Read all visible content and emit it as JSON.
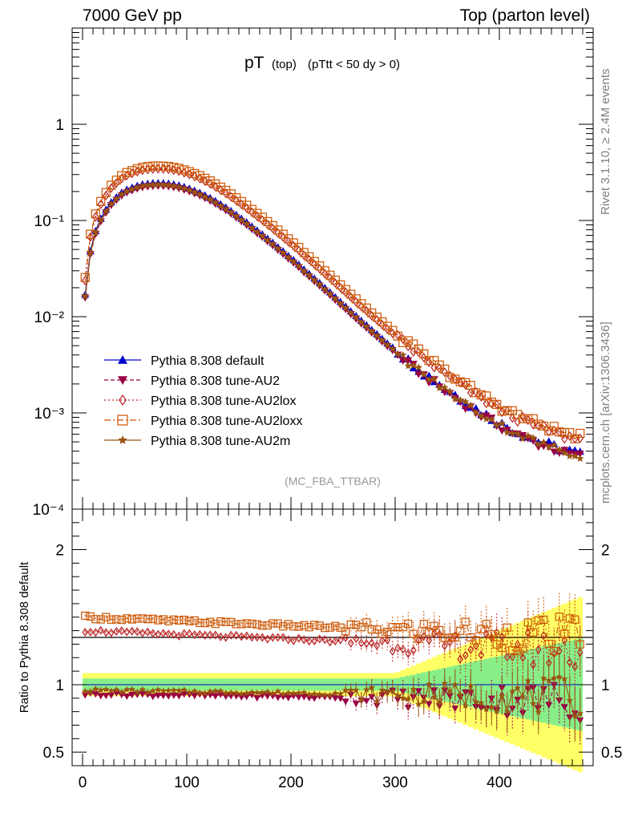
{
  "header": {
    "left": "7000 GeV pp",
    "right": "Top (parton level)"
  },
  "side_labels": {
    "rivet": "Rivet 3.1.10, ≥ 2.4M events",
    "mcplots": "mcplots.cern.ch [arXiv:1306.3436]"
  },
  "chart_data": [
    {
      "type": "line",
      "title_main": "pT",
      "title_sub1": "(top)",
      "title_sub2": "(pTtt < 50 dy > 0)",
      "watermark": "(MC_FBA_TTBAR)",
      "xlim": [
        -10,
        490
      ],
      "ylim": [
        0.0001,
        10
      ],
      "yscale": "log",
      "yticks": [
        "10⁻⁴",
        "10⁻³",
        "10⁻²",
        "10⁻¹",
        "1"
      ],
      "legend_position": "bottom-left",
      "series": [
        {
          "name": "Pythia 8.308 default",
          "color": "#0000cc",
          "marker": "triangle-up",
          "dash": "",
          "scale": 1.0
        },
        {
          "name": "Pythia 8.308 tune-AU2",
          "color": "#990044",
          "marker": "triangle-down",
          "dash": "5,3",
          "scale": 0.93
        },
        {
          "name": "Pythia 8.308 tune-AU2lox",
          "color": "#bb2222",
          "marker": "diamond",
          "dash": "2,3",
          "scale": 1.4
        },
        {
          "name": "Pythia 8.308 tune-AU2loxx",
          "color": "#cc5500",
          "marker": "square-open",
          "dash": "8,3,2,3",
          "scale": 1.5
        },
        {
          "name": "Pythia 8.308 tune-AU2m",
          "color": "#995511",
          "marker": "star",
          "dash": "",
          "scale": 0.96
        }
      ],
      "default_curve": [
        [
          2.5,
          0.017
        ],
        [
          7.5,
          0.048
        ],
        [
          12.5,
          0.078
        ],
        [
          17.5,
          0.105
        ],
        [
          22.5,
          0.13
        ],
        [
          27.5,
          0.155
        ],
        [
          32.5,
          0.175
        ],
        [
          37.5,
          0.195
        ],
        [
          42.5,
          0.21
        ],
        [
          47.5,
          0.22
        ],
        [
          52.5,
          0.23
        ],
        [
          57.5,
          0.238
        ],
        [
          62.5,
          0.242
        ],
        [
          67.5,
          0.245
        ],
        [
          72.5,
          0.246
        ],
        [
          77.5,
          0.245
        ],
        [
          82.5,
          0.243
        ],
        [
          87.5,
          0.238
        ],
        [
          92.5,
          0.232
        ],
        [
          97.5,
          0.224
        ],
        [
          102.5,
          0.215
        ],
        [
          107.5,
          0.205
        ],
        [
          112.5,
          0.195
        ],
        [
          117.5,
          0.183
        ],
        [
          122.5,
          0.172
        ],
        [
          127.5,
          0.16
        ],
        [
          132.5,
          0.148
        ],
        [
          137.5,
          0.137
        ],
        [
          142.5,
          0.126
        ],
        [
          147.5,
          0.115
        ],
        [
          152.5,
          0.105
        ],
        [
          157.5,
          0.096
        ],
        [
          162.5,
          0.087
        ],
        [
          167.5,
          0.079
        ],
        [
          172.5,
          0.072
        ],
        [
          177.5,
          0.065
        ],
        [
          182.5,
          0.059
        ],
        [
          187.5,
          0.053
        ],
        [
          192.5,
          0.048
        ],
        [
          197.5,
          0.043
        ],
        [
          202.5,
          0.039
        ],
        [
          207.5,
          0.035
        ],
        [
          212.5,
          0.031
        ],
        [
          217.5,
          0.028
        ],
        [
          222.5,
          0.025
        ],
        [
          227.5,
          0.0225
        ],
        [
          232.5,
          0.02
        ],
        [
          237.5,
          0.018
        ],
        [
          242.5,
          0.016
        ],
        [
          247.5,
          0.0143
        ],
        [
          252.5,
          0.0128
        ],
        [
          257.5,
          0.0114
        ],
        [
          262.5,
          0.0102
        ],
        [
          267.5,
          0.0091
        ],
        [
          272.5,
          0.0082
        ],
        [
          277.5,
          0.0073
        ],
        [
          282.5,
          0.0066
        ],
        [
          287.5,
          0.0059
        ],
        [
          292.5,
          0.0053
        ],
        [
          297.5,
          0.0048
        ],
        [
          302.5,
          0.0043
        ],
        [
          307.5,
          0.0039
        ],
        [
          312.5,
          0.0035
        ],
        [
          317.5,
          0.0032
        ],
        [
          322.5,
          0.0029
        ],
        [
          327.5,
          0.0026
        ],
        [
          332.5,
          0.0024
        ],
        [
          337.5,
          0.0022
        ],
        [
          342.5,
          0.002
        ],
        [
          347.5,
          0.0018
        ],
        [
          352.5,
          0.0017
        ],
        [
          357.5,
          0.00155
        ],
        [
          362.5,
          0.0014
        ],
        [
          367.5,
          0.0013
        ],
        [
          372.5,
          0.0012
        ],
        [
          377.5,
          0.0011
        ],
        [
          382.5,
          0.00102
        ],
        [
          387.5,
          0.00095
        ],
        [
          392.5,
          0.00088
        ],
        [
          397.5,
          0.00082
        ],
        [
          402.5,
          0.00076
        ],
        [
          407.5,
          0.00071
        ],
        [
          412.5,
          0.00067
        ],
        [
          417.5,
          0.00063
        ],
        [
          422.5,
          0.0006
        ],
        [
          427.5,
          0.00057
        ],
        [
          432.5,
          0.00054
        ],
        [
          437.5,
          0.00051
        ],
        [
          442.5,
          0.00049
        ],
        [
          447.5,
          0.00047
        ],
        [
          452.5,
          0.00045
        ],
        [
          457.5,
          0.00043
        ],
        [
          462.5,
          0.00041
        ],
        [
          467.5,
          0.0004
        ],
        [
          472.5,
          0.00039
        ],
        [
          477.5,
          0.00038
        ]
      ]
    },
    {
      "type": "line",
      "ylabel": "Ratio to Pythia 8.308 default",
      "xlim": [
        -10,
        490
      ],
      "ylim": [
        0.4,
        2.3
      ],
      "ytick_values": [
        0.5,
        1,
        2
      ],
      "yticks": [
        "0.5",
        "1",
        "2"
      ],
      "xtick_values": [
        0,
        100,
        200,
        300,
        400
      ],
      "xticks": [
        "0",
        "100",
        "200",
        "300",
        "400"
      ],
      "bands": {
        "green": "#88ee88",
        "yellow": "#ffff66"
      },
      "ratio_levels": [
        1.0,
        0.93,
        1.4,
        1.5,
        0.96
      ]
    }
  ]
}
